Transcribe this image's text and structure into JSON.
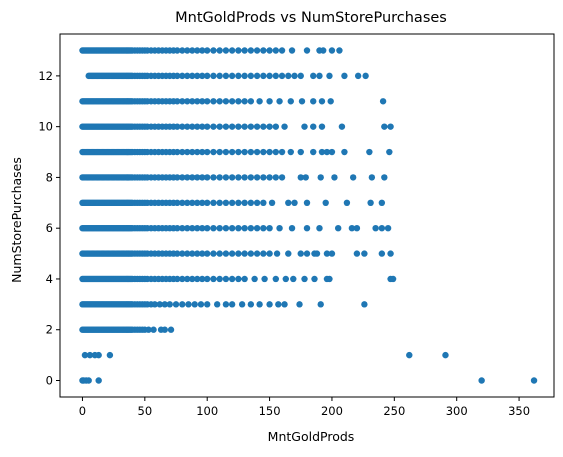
{
  "chart_data": {
    "type": "scatter",
    "title": "MntGoldProds vs NumStorePurchases",
    "xlabel": "MntGoldProds",
    "ylabel": "NumStorePurchases",
    "xlim": [
      -18,
      378
    ],
    "ylim": [
      -0.65,
      13.65
    ],
    "xticks": [
      0,
      50,
      100,
      150,
      200,
      250,
      300,
      350
    ],
    "yticks": [
      0,
      2,
      4,
      6,
      8,
      10,
      12
    ],
    "grid": false,
    "legend": "none",
    "point_color": "#1f77b4",
    "rows": [
      {
        "y": 0,
        "x": [
          0,
          1,
          3,
          5,
          13,
          320,
          362
        ]
      },
      {
        "y": 1,
        "x": [
          2,
          6,
          10,
          13,
          22,
          262,
          291
        ]
      },
      {
        "y": 2,
        "x": [
          0,
          1,
          2,
          3,
          4,
          5,
          6,
          7,
          8,
          9,
          10,
          11,
          12,
          13,
          14,
          15,
          16,
          17,
          18,
          19,
          20,
          21,
          22,
          23,
          24,
          25,
          26,
          27,
          28,
          29,
          30,
          31,
          32,
          33,
          34,
          35,
          36,
          37,
          38,
          39,
          40,
          42,
          44,
          46,
          48,
          50,
          53,
          57,
          63,
          66,
          71
        ]
      },
      {
        "y": 3,
        "x": [
          0,
          1,
          2,
          3,
          4,
          5,
          6,
          7,
          8,
          9,
          10,
          11,
          12,
          13,
          14,
          15,
          16,
          17,
          18,
          19,
          20,
          21,
          22,
          23,
          24,
          25,
          26,
          27,
          28,
          29,
          30,
          31,
          32,
          33,
          34,
          35,
          36,
          37,
          38,
          39,
          40,
          42,
          44,
          46,
          48,
          50,
          52,
          55,
          58,
          62,
          66,
          70,
          75,
          80,
          85,
          90,
          95,
          100,
          108,
          115,
          120,
          128,
          135,
          142,
          150,
          157,
          162,
          174,
          191,
          226
        ]
      },
      {
        "y": 4,
        "x": [
          0,
          1,
          2,
          3,
          4,
          5,
          6,
          7,
          8,
          9,
          10,
          11,
          12,
          13,
          14,
          15,
          16,
          17,
          18,
          19,
          20,
          21,
          22,
          23,
          24,
          25,
          26,
          27,
          28,
          29,
          30,
          31,
          32,
          33,
          34,
          35,
          36,
          37,
          38,
          39,
          40,
          42,
          44,
          46,
          48,
          50,
          52,
          55,
          58,
          61,
          64,
          67,
          70,
          73,
          76,
          80,
          84,
          88,
          92,
          96,
          100,
          105,
          110,
          115,
          120,
          125,
          130,
          138,
          146,
          155,
          163,
          169,
          178,
          186,
          196,
          198,
          247,
          249
        ]
      },
      {
        "y": 5,
        "x": [
          0,
          1,
          2,
          3,
          4,
          5,
          6,
          7,
          8,
          9,
          10,
          11,
          12,
          13,
          14,
          15,
          16,
          17,
          18,
          19,
          20,
          21,
          22,
          23,
          24,
          25,
          26,
          27,
          28,
          29,
          30,
          31,
          32,
          33,
          34,
          35,
          36,
          37,
          38,
          39,
          40,
          42,
          44,
          46,
          48,
          50,
          52,
          55,
          58,
          61,
          64,
          67,
          70,
          73,
          76,
          80,
          84,
          88,
          92,
          96,
          100,
          105,
          110,
          115,
          120,
          125,
          130,
          135,
          140,
          145,
          150,
          156,
          165,
          175,
          180,
          186,
          188,
          196,
          200,
          220,
          226,
          240,
          247
        ]
      },
      {
        "y": 6,
        "x": [
          0,
          1,
          2,
          3,
          4,
          5,
          6,
          7,
          8,
          9,
          10,
          11,
          12,
          13,
          14,
          15,
          16,
          17,
          18,
          19,
          20,
          21,
          22,
          23,
          24,
          25,
          26,
          27,
          28,
          29,
          30,
          31,
          32,
          33,
          34,
          35,
          36,
          37,
          38,
          39,
          40,
          42,
          44,
          46,
          48,
          50,
          52,
          55,
          58,
          61,
          64,
          67,
          70,
          73,
          76,
          80,
          84,
          88,
          92,
          96,
          100,
          105,
          110,
          115,
          120,
          125,
          130,
          135,
          140,
          145,
          150,
          158,
          168,
          180,
          190,
          205,
          216,
          220,
          235,
          240,
          245
        ]
      },
      {
        "y": 7,
        "x": [
          0,
          1,
          2,
          3,
          4,
          5,
          6,
          7,
          8,
          9,
          10,
          11,
          12,
          13,
          14,
          15,
          16,
          17,
          18,
          19,
          20,
          21,
          22,
          23,
          24,
          25,
          26,
          27,
          28,
          29,
          30,
          31,
          32,
          33,
          34,
          35,
          36,
          37,
          38,
          39,
          40,
          42,
          44,
          46,
          48,
          50,
          52,
          55,
          58,
          61,
          64,
          67,
          70,
          73,
          76,
          80,
          84,
          88,
          92,
          96,
          100,
          105,
          110,
          115,
          120,
          125,
          130,
          135,
          140,
          145,
          152,
          165,
          170,
          180,
          195,
          212,
          231,
          240
        ]
      },
      {
        "y": 8,
        "x": [
          0,
          1,
          2,
          3,
          4,
          5,
          6,
          7,
          8,
          9,
          10,
          11,
          12,
          13,
          14,
          15,
          16,
          17,
          18,
          19,
          20,
          21,
          22,
          23,
          24,
          25,
          26,
          27,
          28,
          29,
          30,
          31,
          32,
          33,
          34,
          35,
          36,
          37,
          38,
          39,
          40,
          42,
          44,
          46,
          48,
          50,
          52,
          55,
          58,
          61,
          64,
          67,
          70,
          73,
          76,
          80,
          84,
          88,
          92,
          96,
          100,
          105,
          110,
          115,
          120,
          125,
          130,
          135,
          140,
          145,
          150,
          155,
          160,
          175,
          179,
          191,
          202,
          217,
          232,
          242
        ]
      },
      {
        "y": 9,
        "x": [
          0,
          1,
          2,
          3,
          4,
          5,
          6,
          7,
          8,
          9,
          10,
          11,
          12,
          13,
          14,
          15,
          16,
          17,
          18,
          19,
          20,
          21,
          22,
          23,
          24,
          25,
          26,
          27,
          28,
          29,
          30,
          31,
          32,
          33,
          34,
          35,
          36,
          37,
          38,
          39,
          40,
          42,
          44,
          46,
          48,
          50,
          52,
          55,
          58,
          61,
          64,
          67,
          70,
          73,
          76,
          80,
          84,
          88,
          92,
          96,
          100,
          105,
          110,
          115,
          120,
          125,
          130,
          135,
          140,
          145,
          150,
          155,
          160,
          167,
          175,
          185,
          192,
          196,
          200,
          210,
          230,
          246
        ]
      },
      {
        "y": 10,
        "x": [
          0,
          1,
          2,
          3,
          4,
          5,
          6,
          7,
          8,
          9,
          10,
          11,
          12,
          13,
          14,
          15,
          16,
          17,
          18,
          19,
          20,
          21,
          22,
          23,
          24,
          25,
          26,
          27,
          28,
          29,
          30,
          31,
          32,
          33,
          34,
          35,
          36,
          37,
          38,
          39,
          40,
          42,
          44,
          46,
          48,
          50,
          52,
          55,
          58,
          61,
          64,
          67,
          70,
          73,
          76,
          80,
          84,
          88,
          92,
          96,
          100,
          105,
          110,
          115,
          120,
          125,
          130,
          135,
          140,
          145,
          150,
          155,
          162,
          178,
          185,
          192,
          208,
          242,
          247
        ]
      },
      {
        "y": 11,
        "x": [
          0,
          1,
          2,
          3,
          4,
          5,
          6,
          7,
          8,
          9,
          10,
          11,
          12,
          13,
          14,
          15,
          16,
          17,
          18,
          19,
          20,
          21,
          22,
          23,
          24,
          25,
          26,
          27,
          28,
          29,
          30,
          31,
          32,
          33,
          34,
          35,
          36,
          37,
          38,
          39,
          40,
          42,
          44,
          46,
          48,
          50,
          52,
          55,
          58,
          61,
          64,
          67,
          70,
          73,
          76,
          80,
          84,
          88,
          92,
          96,
          100,
          105,
          110,
          115,
          120,
          125,
          130,
          135,
          142,
          150,
          158,
          167,
          176,
          185,
          192,
          199,
          241
        ]
      },
      {
        "y": 12,
        "x": [
          5,
          6,
          7,
          8,
          9,
          10,
          11,
          12,
          13,
          14,
          15,
          16,
          17,
          18,
          19,
          20,
          21,
          22,
          23,
          24,
          25,
          26,
          27,
          28,
          29,
          30,
          31,
          32,
          33,
          34,
          35,
          36,
          37,
          38,
          39,
          40,
          42,
          44,
          46,
          48,
          50,
          52,
          55,
          58,
          61,
          64,
          67,
          70,
          73,
          76,
          80,
          84,
          88,
          92,
          96,
          100,
          105,
          110,
          115,
          120,
          125,
          130,
          135,
          140,
          145,
          150,
          155,
          160,
          165,
          170,
          175,
          185,
          190,
          198,
          210,
          221,
          227
        ]
      },
      {
        "y": 13,
        "x": [
          0,
          1,
          2,
          3,
          4,
          5,
          6,
          7,
          8,
          9,
          10,
          11,
          12,
          13,
          14,
          15,
          16,
          17,
          18,
          19,
          20,
          21,
          22,
          23,
          24,
          25,
          26,
          27,
          28,
          29,
          30,
          31,
          32,
          33,
          34,
          35,
          36,
          37,
          38,
          39,
          40,
          42,
          44,
          46,
          48,
          50,
          52,
          55,
          58,
          61,
          64,
          67,
          70,
          73,
          76,
          80,
          84,
          88,
          92,
          96,
          100,
          105,
          110,
          115,
          120,
          125,
          130,
          135,
          140,
          145,
          150,
          155,
          160,
          168,
          180,
          190,
          193,
          200,
          206
        ]
      }
    ]
  }
}
